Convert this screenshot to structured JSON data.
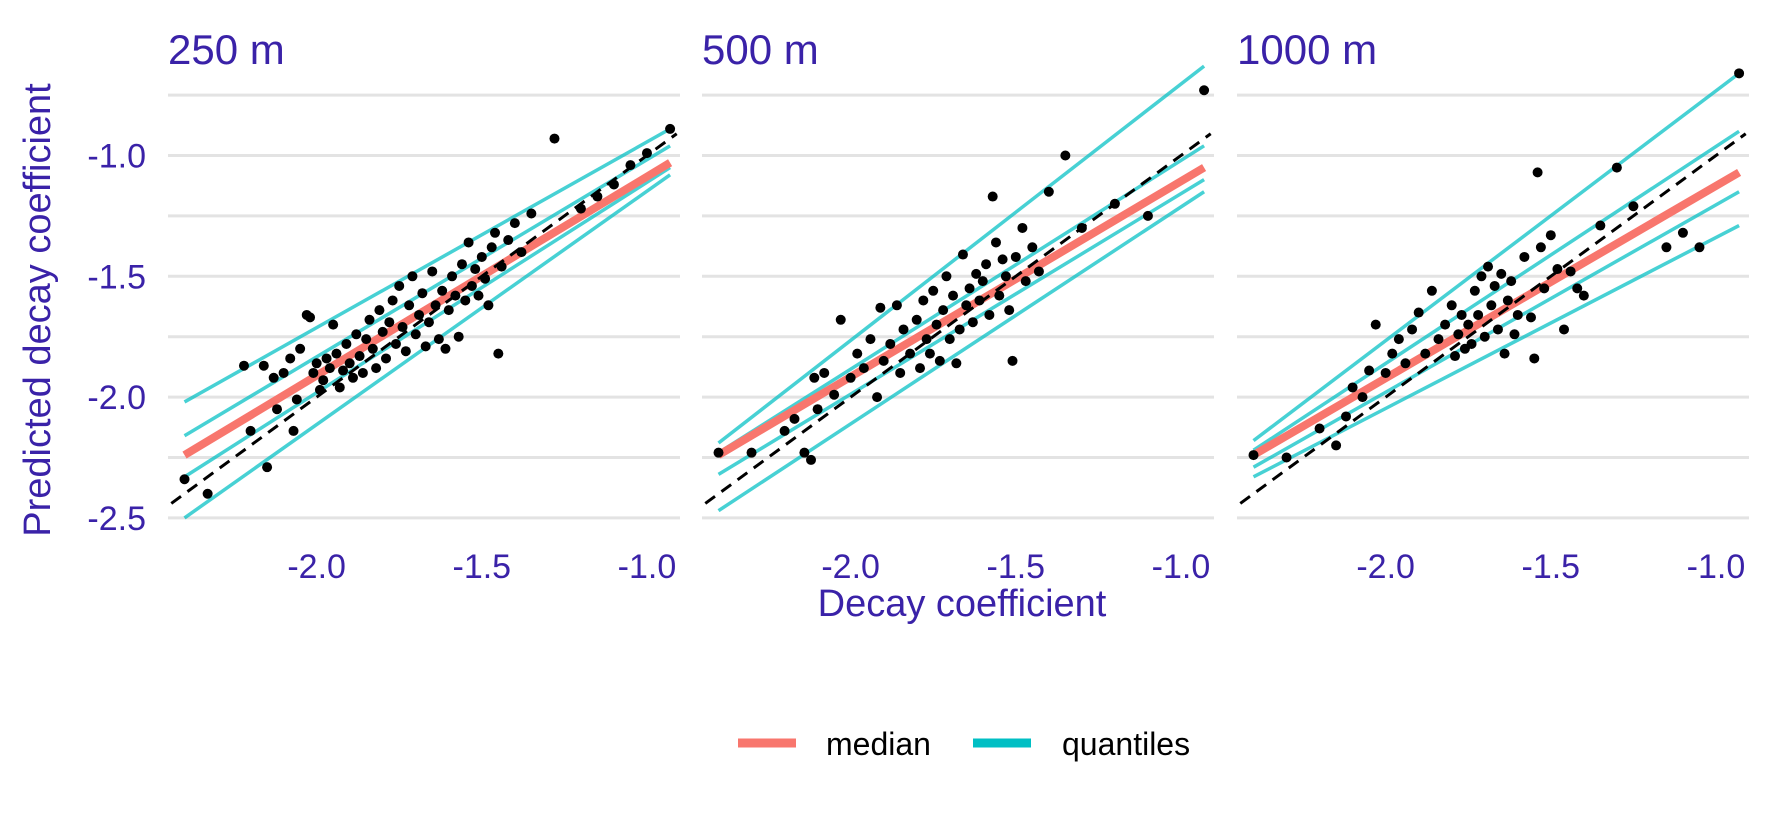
{
  "chart_data": {
    "type": "scatter",
    "xlabel": "Decay coefficient",
    "ylabel": "Predicted decay coefficient",
    "xlim": [
      -2.45,
      -0.9
    ],
    "ylim": [
      -2.55,
      -0.7
    ],
    "xticks": [
      "-2.0",
      "-1.5",
      "-1.0"
    ],
    "yticks": [
      "-1.0",
      "-1.5",
      "-2.0",
      "-2.5"
    ],
    "grid": "horizontal",
    "legend_position": "bottom",
    "legend": [
      {
        "label": "median",
        "color": "#F8766D"
      },
      {
        "label": "quantiles",
        "color": "#00BFC4"
      }
    ],
    "reference_line": {
      "style": "dashed",
      "color": "#000000",
      "slope": 1,
      "intercept": 0
    },
    "panels": [
      {
        "title": "250 m",
        "median": [
          [
            -2.4,
            -2.24
          ],
          [
            -0.93,
            -1.03
          ]
        ],
        "quantiles": [
          [
            [
              -2.4,
              -2.02
            ],
            [
              -0.93,
              -0.89
            ]
          ],
          [
            [
              -2.4,
              -2.16
            ],
            [
              -0.93,
              -0.96
            ]
          ],
          [
            [
              -2.4,
              -2.33
            ],
            [
              -0.93,
              -1.05
            ]
          ],
          [
            [
              -2.4,
              -2.5
            ],
            [
              -0.93,
              -1.08
            ]
          ]
        ],
        "points": [
          [
            -2.4,
            -2.34
          ],
          [
            -2.33,
            -2.4
          ],
          [
            -2.22,
            -1.87
          ],
          [
            -2.2,
            -2.14
          ],
          [
            -2.16,
            -1.87
          ],
          [
            -2.15,
            -2.29
          ],
          [
            -2.13,
            -1.92
          ],
          [
            -2.12,
            -2.05
          ],
          [
            -2.1,
            -1.9
          ],
          [
            -2.08,
            -1.84
          ],
          [
            -2.07,
            -2.14
          ],
          [
            -2.06,
            -2.01
          ],
          [
            -2.05,
            -1.8
          ],
          [
            -2.03,
            -1.66
          ],
          [
            -2.02,
            -1.67
          ],
          [
            -2.01,
            -1.9
          ],
          [
            -2.0,
            -1.86
          ],
          [
            -1.99,
            -1.97
          ],
          [
            -1.98,
            -1.93
          ],
          [
            -1.97,
            -1.84
          ],
          [
            -1.96,
            -1.88
          ],
          [
            -1.95,
            -1.7
          ],
          [
            -1.94,
            -1.82
          ],
          [
            -1.93,
            -1.96
          ],
          [
            -1.92,
            -1.89
          ],
          [
            -1.91,
            -1.78
          ],
          [
            -1.9,
            -1.86
          ],
          [
            -1.89,
            -1.92
          ],
          [
            -1.88,
            -1.74
          ],
          [
            -1.87,
            -1.83
          ],
          [
            -1.86,
            -1.9
          ],
          [
            -1.85,
            -1.76
          ],
          [
            -1.84,
            -1.68
          ],
          [
            -1.83,
            -1.8
          ],
          [
            -1.82,
            -1.88
          ],
          [
            -1.81,
            -1.64
          ],
          [
            -1.8,
            -1.73
          ],
          [
            -1.79,
            -1.84
          ],
          [
            -1.78,
            -1.69
          ],
          [
            -1.77,
            -1.6
          ],
          [
            -1.76,
            -1.78
          ],
          [
            -1.75,
            -1.54
          ],
          [
            -1.74,
            -1.71
          ],
          [
            -1.73,
            -1.81
          ],
          [
            -1.72,
            -1.62
          ],
          [
            -1.71,
            -1.5
          ],
          [
            -1.7,
            -1.74
          ],
          [
            -1.69,
            -1.66
          ],
          [
            -1.68,
            -1.57
          ],
          [
            -1.67,
            -1.79
          ],
          [
            -1.66,
            -1.69
          ],
          [
            -1.65,
            -1.48
          ],
          [
            -1.64,
            -1.62
          ],
          [
            -1.63,
            -1.76
          ],
          [
            -1.62,
            -1.56
          ],
          [
            -1.61,
            -1.8
          ],
          [
            -1.6,
            -1.64
          ],
          [
            -1.59,
            -1.5
          ],
          [
            -1.58,
            -1.58
          ],
          [
            -1.57,
            -1.75
          ],
          [
            -1.56,
            -1.45
          ],
          [
            -1.55,
            -1.6
          ],
          [
            -1.54,
            -1.36
          ],
          [
            -1.53,
            -1.54
          ],
          [
            -1.52,
            -1.47
          ],
          [
            -1.51,
            -1.58
          ],
          [
            -1.5,
            -1.42
          ],
          [
            -1.49,
            -1.51
          ],
          [
            -1.48,
            -1.62
          ],
          [
            -1.47,
            -1.38
          ],
          [
            -1.46,
            -1.32
          ],
          [
            -1.45,
            -1.82
          ],
          [
            -1.44,
            -1.46
          ],
          [
            -1.42,
            -1.35
          ],
          [
            -1.4,
            -1.28
          ],
          [
            -1.38,
            -1.4
          ],
          [
            -1.35,
            -1.24
          ],
          [
            -1.28,
            -0.93
          ],
          [
            -1.2,
            -1.22
          ],
          [
            -1.15,
            -1.17
          ],
          [
            -1.1,
            -1.12
          ],
          [
            -1.05,
            -1.04
          ],
          [
            -1.0,
            -0.99
          ],
          [
            -0.93,
            -0.89
          ]
        ]
      },
      {
        "title": "500 m",
        "median": [
          [
            -2.4,
            -2.24
          ],
          [
            -0.93,
            -1.05
          ]
        ],
        "quantiles": [
          [
            [
              -2.4,
              -2.19
            ],
            [
              -0.93,
              -0.63
            ]
          ],
          [
            [
              -2.4,
              -2.23
            ],
            [
              -0.93,
              -0.96
            ]
          ],
          [
            [
              -2.4,
              -2.32
            ],
            [
              -0.93,
              -1.1
            ]
          ],
          [
            [
              -2.4,
              -2.47
            ],
            [
              -0.93,
              -1.15
            ]
          ]
        ],
        "points": [
          [
            -2.4,
            -2.23
          ],
          [
            -2.3,
            -2.23
          ],
          [
            -2.2,
            -2.14
          ],
          [
            -2.17,
            -2.09
          ],
          [
            -2.14,
            -2.23
          ],
          [
            -2.12,
            -2.26
          ],
          [
            -2.11,
            -1.92
          ],
          [
            -2.1,
            -2.05
          ],
          [
            -2.08,
            -1.9
          ],
          [
            -2.05,
            -1.99
          ],
          [
            -2.03,
            -1.68
          ],
          [
            -2.0,
            -1.92
          ],
          [
            -1.98,
            -1.82
          ],
          [
            -1.96,
            -1.88
          ],
          [
            -1.94,
            -1.76
          ],
          [
            -1.92,
            -2.0
          ],
          [
            -1.91,
            -1.63
          ],
          [
            -1.9,
            -1.85
          ],
          [
            -1.88,
            -1.78
          ],
          [
            -1.86,
            -1.62
          ],
          [
            -1.85,
            -1.9
          ],
          [
            -1.84,
            -1.72
          ],
          [
            -1.82,
            -1.82
          ],
          [
            -1.8,
            -1.68
          ],
          [
            -1.79,
            -1.88
          ],
          [
            -1.78,
            -1.6
          ],
          [
            -1.77,
            -1.76
          ],
          [
            -1.76,
            -1.82
          ],
          [
            -1.75,
            -1.56
          ],
          [
            -1.74,
            -1.7
          ],
          [
            -1.73,
            -1.85
          ],
          [
            -1.72,
            -1.64
          ],
          [
            -1.71,
            -1.5
          ],
          [
            -1.7,
            -1.76
          ],
          [
            -1.69,
            -1.58
          ],
          [
            -1.68,
            -1.86
          ],
          [
            -1.67,
            -1.72
          ],
          [
            -1.66,
            -1.41
          ],
          [
            -1.65,
            -1.62
          ],
          [
            -1.64,
            -1.55
          ],
          [
            -1.63,
            -1.69
          ],
          [
            -1.62,
            -1.49
          ],
          [
            -1.61,
            -1.6
          ],
          [
            -1.6,
            -1.52
          ],
          [
            -1.59,
            -1.45
          ],
          [
            -1.58,
            -1.66
          ],
          [
            -1.57,
            -1.17
          ],
          [
            -1.56,
            -1.36
          ],
          [
            -1.55,
            -1.58
          ],
          [
            -1.54,
            -1.43
          ],
          [
            -1.53,
            -1.5
          ],
          [
            -1.52,
            -1.64
          ],
          [
            -1.51,
            -1.85
          ],
          [
            -1.5,
            -1.42
          ],
          [
            -1.48,
            -1.3
          ],
          [
            -1.47,
            -1.52
          ],
          [
            -1.45,
            -1.38
          ],
          [
            -1.43,
            -1.48
          ],
          [
            -1.4,
            -1.15
          ],
          [
            -1.35,
            -1.0
          ],
          [
            -1.3,
            -1.3
          ],
          [
            -1.2,
            -1.2
          ],
          [
            -1.1,
            -1.25
          ],
          [
            -0.93,
            -0.73
          ]
        ]
      },
      {
        "title": "1000 m",
        "median": [
          [
            -2.4,
            -2.24
          ],
          [
            -0.93,
            -1.07
          ]
        ],
        "quantiles": [
          [
            [
              -2.4,
              -2.18
            ],
            [
              -0.93,
              -0.66
            ]
          ],
          [
            [
              -2.4,
              -2.22
            ],
            [
              -0.93,
              -0.9
            ]
          ],
          [
            [
              -2.4,
              -2.29
            ],
            [
              -0.93,
              -1.15
            ]
          ],
          [
            [
              -2.4,
              -2.33
            ],
            [
              -0.93,
              -1.29
            ]
          ]
        ],
        "points": [
          [
            -2.4,
            -2.24
          ],
          [
            -2.3,
            -2.25
          ],
          [
            -2.2,
            -2.13
          ],
          [
            -2.15,
            -2.2
          ],
          [
            -2.12,
            -2.08
          ],
          [
            -2.1,
            -1.96
          ],
          [
            -2.07,
            -2.0
          ],
          [
            -2.05,
            -1.89
          ],
          [
            -2.03,
            -1.7
          ],
          [
            -2.0,
            -1.9
          ],
          [
            -1.98,
            -1.82
          ],
          [
            -1.96,
            -1.76
          ],
          [
            -1.94,
            -1.86
          ],
          [
            -1.92,
            -1.72
          ],
          [
            -1.9,
            -1.65
          ],
          [
            -1.88,
            -1.82
          ],
          [
            -1.86,
            -1.56
          ],
          [
            -1.84,
            -1.76
          ],
          [
            -1.82,
            -1.7
          ],
          [
            -1.8,
            -1.62
          ],
          [
            -1.79,
            -1.83
          ],
          [
            -1.78,
            -1.74
          ],
          [
            -1.77,
            -1.66
          ],
          [
            -1.76,
            -1.8
          ],
          [
            -1.75,
            -1.7
          ],
          [
            -1.74,
            -1.78
          ],
          [
            -1.73,
            -1.56
          ],
          [
            -1.72,
            -1.66
          ],
          [
            -1.71,
            -1.5
          ],
          [
            -1.7,
            -1.75
          ],
          [
            -1.69,
            -1.46
          ],
          [
            -1.68,
            -1.62
          ],
          [
            -1.67,
            -1.54
          ],
          [
            -1.66,
            -1.72
          ],
          [
            -1.65,
            -1.49
          ],
          [
            -1.64,
            -1.82
          ],
          [
            -1.63,
            -1.6
          ],
          [
            -1.62,
            -1.52
          ],
          [
            -1.61,
            -1.74
          ],
          [
            -1.6,
            -1.66
          ],
          [
            -1.58,
            -1.42
          ],
          [
            -1.56,
            -1.67
          ],
          [
            -1.55,
            -1.84
          ],
          [
            -1.54,
            -1.07
          ],
          [
            -1.53,
            -1.38
          ],
          [
            -1.52,
            -1.55
          ],
          [
            -1.5,
            -1.33
          ],
          [
            -1.48,
            -1.47
          ],
          [
            -1.46,
            -1.72
          ],
          [
            -1.44,
            -1.48
          ],
          [
            -1.42,
            -1.55
          ],
          [
            -1.4,
            -1.58
          ],
          [
            -1.35,
            -1.29
          ],
          [
            -1.3,
            -1.05
          ],
          [
            -1.25,
            -1.21
          ],
          [
            -1.15,
            -1.38
          ],
          [
            -1.1,
            -1.32
          ],
          [
            -1.05,
            -1.38
          ],
          [
            -0.93,
            -0.66
          ]
        ]
      }
    ]
  }
}
